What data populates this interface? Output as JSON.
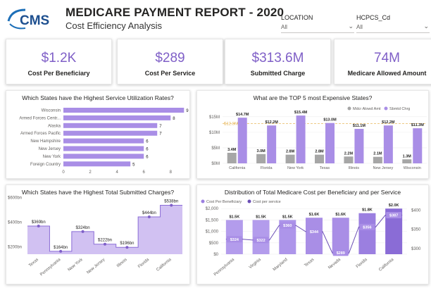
{
  "header": {
    "logo_text": "CMS",
    "title": "MEDICARE PAYMENT REPORT - 2020",
    "subtitle": "Cost Efficiency Analysis"
  },
  "filters": [
    {
      "label": "LOCATION",
      "value": "All"
    },
    {
      "label": "HCPCS_Cd",
      "value": "All"
    }
  ],
  "kpis": [
    {
      "value": "$1.2K",
      "label": "Cost Per Beneficiary"
    },
    {
      "value": "$289",
      "label": "Cost Per Service"
    },
    {
      "value": "$313.6M",
      "label": "Submitted Charge"
    },
    {
      "value": "74M",
      "label": "Medicare Allowed Amount"
    }
  ],
  "colors": {
    "accent": "#7f5fc7",
    "bar_light": "#a98ee6",
    "bar_mid": "#9b7fe0",
    "grey": "#a6a6a6",
    "area": "#c9b6f0",
    "line": "#8a6cd6",
    "ref": "#e8b85c"
  },
  "chart_data": [
    {
      "type": "bar",
      "orientation": "horizontal",
      "title": "Which States have the Highest Service Utilization Rates?",
      "categories": [
        "Wisconsin",
        "Armed Forces Centr...",
        "Alaska",
        "Armed Forces Pacific",
        "New Hampshire",
        "New Jersey",
        "New York",
        "Foreign Country"
      ],
      "values": [
        9,
        8,
        7,
        7,
        6,
        6,
        6,
        5
      ],
      "value_labels": [
        "9",
        "8",
        "7",
        "7",
        "6",
        "6",
        "6",
        "5"
      ],
      "xlim": [
        0,
        9
      ],
      "ticks": [
        "0",
        "2",
        "4",
        "6",
        "8"
      ]
    },
    {
      "type": "bar",
      "title": "What are the TOP 5 most Expensive States?",
      "categories": [
        "California",
        "Florida",
        "New York",
        "Texas",
        "Illinois",
        "New Jersey",
        "Wisconsin"
      ],
      "series": [
        {
          "name": "Mdcr Alowd Amt",
          "values": [
            3.4,
            3.0,
            2.8,
            2.8,
            2.2,
            2.1,
            1.3
          ],
          "labels": [
            "3.4M",
            "3.0M",
            "2.8M",
            "2.8M",
            "2.2M",
            "2.1M",
            "1.3M"
          ]
        },
        {
          "name": "Sbmtd Chrg",
          "values": [
            14.7,
            12.2,
            15.4,
            13.0,
            11.1,
            12.2,
            11.3
          ],
          "labels": [
            "$14.7M",
            "$12.2M",
            "$15.4M",
            "$13.0M",
            "$11.1M",
            "$12.2M",
            "$11.3M"
          ]
        }
      ],
      "reference_line": {
        "value": 12.8,
        "label": "$12.8M"
      },
      "ylim": [
        0,
        17
      ],
      "yticks": [
        "$0M",
        "$5M",
        "$10M",
        "$15M"
      ]
    },
    {
      "type": "area",
      "title": "Which States have the Highest Total Submitted Charges?",
      "categories": [
        "Texas",
        "Pennsylvania",
        "New York",
        "New Jersey",
        "Illinois",
        "Florida",
        "California"
      ],
      "values": [
        369,
        164,
        324,
        222,
        196,
        444,
        538
      ],
      "labels": [
        "$369bn",
        "$164bn",
        "$324bn",
        "$222bn",
        "$196bn",
        "$444bn",
        "$538bn"
      ],
      "ylim": [
        140,
        610
      ],
      "yticks": [
        "$200bn",
        "$400bn",
        "$600bn"
      ]
    },
    {
      "type": "bar",
      "title": "Distribution of Total Medicare Cost per Beneficiary and per Service",
      "categories": [
        "Pennsylvania",
        "Virginia",
        "Maryland",
        "Texas",
        "Nevada",
        "Florida",
        "California"
      ],
      "series": [
        {
          "name": "Cost Per Beneficiary",
          "values": [
            1.5,
            1.5,
            1.5,
            1.6,
            1.6,
            1.8,
            2.0
          ],
          "labels": [
            "$1.5K",
            "$1.5K",
            "$1.5K",
            "$1.6K",
            "$1.6K",
            "$1.8K",
            "$2.0K"
          ]
        },
        {
          "name": "Cost per service",
          "values": [
            324,
            322,
            360,
            344,
            289,
            356,
            387
          ],
          "labels": [
            "$324",
            "$322",
            "$360",
            "$344",
            "$289",
            "$356",
            "$387"
          ]
        }
      ],
      "ylim": [
        0,
        2100
      ],
      "yticks": [
        "$0",
        "$500",
        "$1,000",
        "$1,500",
        "$2,000"
      ],
      "y2lim": [
        285,
        410
      ],
      "y2ticks": [
        "$300",
        "$350",
        "$400"
      ]
    }
  ]
}
